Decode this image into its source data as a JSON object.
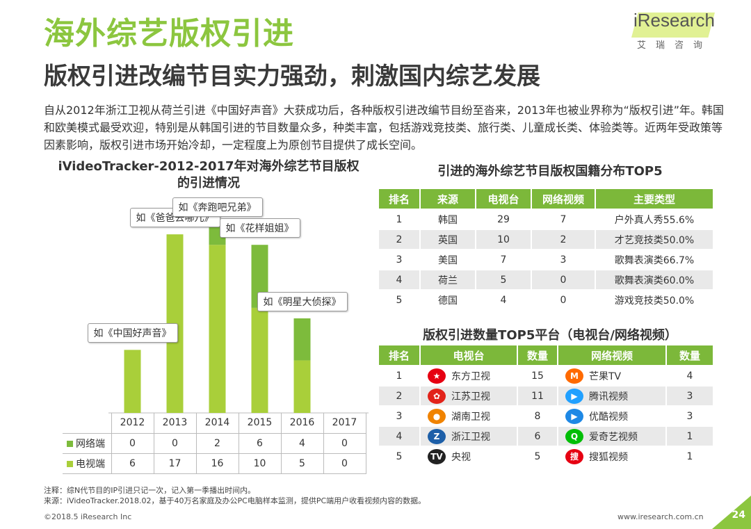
{
  "header": {
    "title": "海外综艺版权引进",
    "subtitle": "版权引进改编节目实力强劲，刺激国内综艺发展",
    "logo_text": "iResearch",
    "logo_sub": "艾瑞咨询"
  },
  "intro": "自从2012年浙江卫视从荷兰引进《中国好声音》大获成功后，各种版权引进改编节目纷至沓来，2013年也被业界称为“版权引进”年。韩国和欧美模式最受欢迎，特别是从韩国引进的节目数量众多，种类丰富，包括游戏竞技类、旅行类、儿童成长类、体验类等。近两年受政策等因素影响，版权引进市场开始冷却，一定程度上为原创节目提供了成长空间。",
  "left_title": "iVideoTracker-2012-2017年对海外综艺节目版权的引进情况",
  "chart_data": {
    "type": "bar",
    "stacked": true,
    "categories": [
      "2012",
      "2013",
      "2014",
      "2015",
      "2016",
      "2017"
    ],
    "series": [
      {
        "name": "电视端",
        "values": [
          6,
          17,
          16,
          10,
          5,
          0
        ]
      },
      {
        "name": "网络端",
        "values": [
          0,
          0,
          2,
          6,
          4,
          0
        ]
      }
    ],
    "annotations": [
      {
        "category": "2012",
        "text": "如《中国好声音》"
      },
      {
        "category": "2013",
        "text": "如《爸爸去哪儿》"
      },
      {
        "category": "2014",
        "text": "如《奔跑吧兄弟》"
      },
      {
        "category": "2015",
        "text": "如《花样姐姐》"
      },
      {
        "category": "2016",
        "text": "如《明星大侦探》"
      }
    ],
    "ylim": [
      0,
      18
    ],
    "colors": {
      "电视端": "#a9cf3a",
      "网络端": "#8cc63f"
    }
  },
  "colors": {
    "tv": "#a9cf3a",
    "net": "#7dbb3c",
    "accent": "#8cc63f",
    "header_green": "#7cb83a"
  },
  "country_table": {
    "title": "引进的海外综艺节目版权国籍分布TOP5",
    "headers": [
      "排名",
      "来源",
      "电视台",
      "网络视频",
      "主要类型"
    ],
    "rows": [
      [
        "1",
        "韩国",
        "29",
        "7",
        "户外真人秀55.6%"
      ],
      [
        "2",
        "英国",
        "10",
        "2",
        "才艺竞技类50.0%"
      ],
      [
        "3",
        "美国",
        "7",
        "3",
        "歌舞表演类66.7%"
      ],
      [
        "4",
        "荷兰",
        "5",
        "0",
        "歌舞表演类60.0%"
      ],
      [
        "5",
        "德国",
        "4",
        "0",
        "游戏竞技类50.0%"
      ]
    ]
  },
  "platform_table": {
    "title": "版权引进数量TOP5平台（电视台/网络视频）",
    "headers": [
      "排名",
      "电视台",
      "数量",
      "网络视频",
      "数量"
    ],
    "rows": [
      {
        "rank": "1",
        "tv": "东方卫视",
        "tv_icon": "dragon-tv-icon",
        "tv_count": "15",
        "net": "芒果TV",
        "net_icon": "mango-tv-icon",
        "net_count": "4"
      },
      {
        "rank": "2",
        "tv": "江苏卫视",
        "tv_icon": "jiangsu-tv-icon",
        "tv_count": "11",
        "net": "腾讯视频",
        "net_icon": "tencent-video-icon",
        "net_count": "3"
      },
      {
        "rank": "3",
        "tv": "湖南卫视",
        "tv_icon": "hunan-tv-icon",
        "tv_count": "8",
        "net": "优酷视频",
        "net_icon": "youku-icon",
        "net_count": "3"
      },
      {
        "rank": "4",
        "tv": "浙江卫视",
        "tv_icon": "zhejiang-tv-icon",
        "tv_count": "6",
        "net": "爱奇艺视频",
        "net_icon": "iqiyi-icon",
        "net_count": "1"
      },
      {
        "rank": "5",
        "tv": "央视",
        "tv_icon": "cctv-icon",
        "tv_count": "5",
        "net": "搜狐视频",
        "net_icon": "sohu-video-icon",
        "net_count": "1"
      }
    ]
  },
  "notes": {
    "note": "注释：综N代节目的IP引进只记一次，记入第一季播出时间内。",
    "source": "来源：iVideoTracker.2018.02，基于40万名家庭及办公PC电脑样本监测，提供PC端用户收看视频内容的数据。"
  },
  "footer": {
    "copyright": "©2018.5 iResearch Inc",
    "website": "www.iresearch.com.cn",
    "page": "24"
  }
}
